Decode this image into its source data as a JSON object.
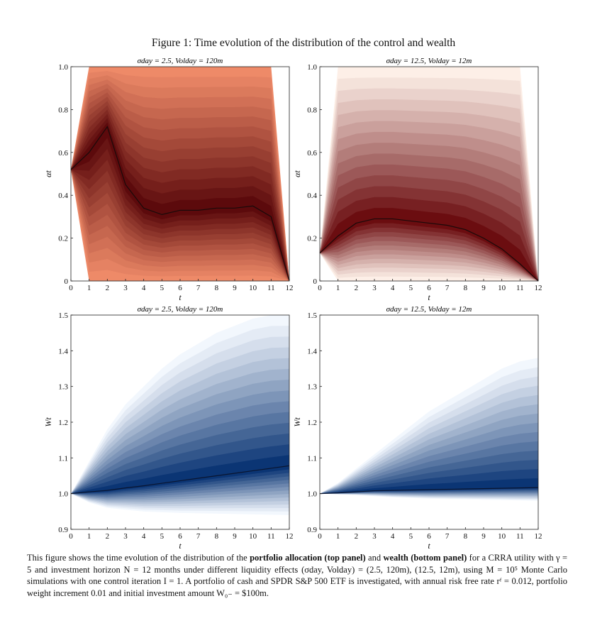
{
  "figure": {
    "title": "Figure 1: Time evolution of the distribution of the control and wealth"
  },
  "panels": [
    {
      "id": "alloc-left",
      "subtitle": "σday = 2.5, Volday = 120m",
      "ylabel": "αt",
      "xlabel": "t",
      "xticks": [
        "0",
        "1",
        "2",
        "3",
        "4",
        "5",
        "6",
        "7",
        "8",
        "9",
        "10",
        "11",
        "12"
      ],
      "yticks": [
        "0",
        "0.2",
        "0.4",
        "0.6",
        "0.8",
        "1.0"
      ],
      "colors": {
        "light": "#ee8a68",
        "dark": "#5c0a0c",
        "median": "#1a0a0a"
      }
    },
    {
      "id": "alloc-right",
      "subtitle": "σday = 12.5, Volday = 12m",
      "ylabel": "αt",
      "xlabel": "t",
      "xticks": [
        "0",
        "1",
        "2",
        "3",
        "4",
        "5",
        "6",
        "7",
        "8",
        "9",
        "10",
        "11",
        "12"
      ],
      "yticks": [
        "0",
        "0.2",
        "0.4",
        "0.6",
        "0.8",
        "1.0"
      ],
      "colors": {
        "light": "#fdefe7",
        "dark": "#6b0d10",
        "median": "#1a0a0a"
      }
    },
    {
      "id": "wealth-left",
      "subtitle": "σday = 2.5, Volday = 120m",
      "ylabel": "Wt",
      "xlabel": "t",
      "xticks": [
        "0",
        "1",
        "2",
        "3",
        "4",
        "5",
        "6",
        "7",
        "8",
        "9",
        "10",
        "11",
        "12"
      ],
      "yticks": [
        "0.9",
        "1.0",
        "1.1",
        "1.2",
        "1.3",
        "1.4",
        "1.5"
      ],
      "colors": {
        "light": "#f2f7fd",
        "dark": "#0b3574",
        "median": "#0a1530"
      }
    },
    {
      "id": "wealth-right",
      "subtitle": "σday = 12.5, Volday = 12m",
      "ylabel": "Wt",
      "xlabel": "t",
      "xticks": [
        "0",
        "1",
        "2",
        "3",
        "4",
        "5",
        "6",
        "7",
        "8",
        "9",
        "10",
        "11",
        "12"
      ],
      "yticks": [
        "0.9",
        "1.0",
        "1.1",
        "1.2",
        "1.3",
        "1.4",
        "1.5"
      ],
      "colors": {
        "light": "#f2f7fd",
        "dark": "#0b3574",
        "median": "#0a1530"
      }
    }
  ],
  "chart_data": [
    {
      "type": "area",
      "title": "σday = 2.5, Volday = 120m",
      "xlabel": "t",
      "ylabel": "αt",
      "xlim": [
        0,
        12
      ],
      "ylim": [
        0,
        1
      ],
      "x": [
        0,
        1,
        2,
        3,
        4,
        5,
        6,
        7,
        8,
        9,
        10,
        11,
        12
      ],
      "median": [
        0.52,
        0.6,
        0.72,
        0.45,
        0.34,
        0.31,
        0.33,
        0.33,
        0.34,
        0.34,
        0.35,
        0.3,
        0.0
      ],
      "lower_bound": [
        0.52,
        0.0,
        0.0,
        0.0,
        0.0,
        0.0,
        0.0,
        0.0,
        0.0,
        0.0,
        0.0,
        0.0,
        0.0
      ],
      "upper_bound": [
        0.52,
        1.0,
        1.0,
        1.0,
        1.0,
        1.0,
        1.0,
        1.0,
        1.0,
        1.0,
        1.0,
        1.0,
        0.0
      ]
    },
    {
      "type": "area",
      "title": "σday = 12.5, Volday = 12m",
      "xlabel": "t",
      "ylabel": "αt",
      "xlim": [
        0,
        12
      ],
      "ylim": [
        0,
        1
      ],
      "x": [
        0,
        1,
        2,
        3,
        4,
        5,
        6,
        7,
        8,
        9,
        10,
        11,
        12
      ],
      "median": [
        0.13,
        0.21,
        0.27,
        0.29,
        0.29,
        0.28,
        0.27,
        0.26,
        0.24,
        0.2,
        0.15,
        0.08,
        0.0
      ],
      "lower_bound": [
        0.13,
        0.0,
        0.0,
        0.0,
        0.0,
        0.0,
        0.0,
        0.0,
        0.0,
        0.0,
        0.0,
        0.0,
        0.0
      ],
      "upper_bound": [
        0.13,
        1.0,
        1.0,
        1.0,
        1.0,
        1.0,
        1.0,
        1.0,
        1.0,
        1.0,
        1.0,
        1.0,
        0.0
      ]
    },
    {
      "type": "area",
      "title": "σday = 2.5, Volday = 120m",
      "xlabel": "t",
      "ylabel": "Wt",
      "xlim": [
        0,
        12
      ],
      "ylim": [
        0.9,
        1.5
      ],
      "x": [
        0,
        1,
        2,
        3,
        4,
        5,
        6,
        7,
        8,
        9,
        10,
        11,
        12
      ],
      "median": [
        1.0,
        1.005,
        1.009,
        1.016,
        1.022,
        1.029,
        1.036,
        1.043,
        1.05,
        1.057,
        1.064,
        1.071,
        1.078
      ],
      "lower_bound": [
        1.0,
        0.975,
        0.96,
        0.955,
        0.95,
        0.948,
        0.946,
        0.945,
        0.944,
        0.943,
        0.942,
        0.941,
        0.94
      ],
      "upper_bound": [
        1.0,
        1.09,
        1.18,
        1.25,
        1.3,
        1.35,
        1.39,
        1.42,
        1.45,
        1.47,
        1.49,
        1.5,
        1.5
      ]
    },
    {
      "type": "area",
      "title": "σday = 12.5, Volday = 12m",
      "xlabel": "t",
      "ylabel": "Wt",
      "xlim": [
        0,
        12
      ],
      "ylim": [
        0.9,
        1.5
      ],
      "x": [
        0,
        1,
        2,
        3,
        4,
        5,
        6,
        7,
        8,
        9,
        10,
        11,
        12
      ],
      "median": [
        1.0,
        1.002,
        1.005,
        1.008,
        1.009,
        1.01,
        1.011,
        1.012,
        1.013,
        1.014,
        1.015,
        1.016,
        1.017
      ],
      "lower_bound": [
        1.0,
        0.998,
        0.996,
        0.993,
        0.99,
        0.988,
        0.986,
        0.985,
        0.984,
        0.983,
        0.982,
        0.981,
        0.98
      ],
      "upper_bound": [
        1.0,
        1.03,
        1.07,
        1.11,
        1.15,
        1.19,
        1.23,
        1.26,
        1.29,
        1.32,
        1.35,
        1.37,
        1.38
      ]
    }
  ],
  "caption": {
    "p1": "This figure shows the time evolution of the distribution of the ",
    "b1": "portfolio allocation (top panel)",
    "p2": " and ",
    "b2": "wealth (bottom panel)",
    "p3": " for a CRRA utility with γ = 5 and investment horizon N = 12 months under different liquidity effects (σday, Volday) = (2.5, 120m), (12.5, 12m), using M = 10⁵ Monte Carlo simulations with one control iteration I = 1. A portfolio of cash and SPDR S&P 500 ETF is investigated, with annual risk free rate rᶠ = 0.012, portfolio weight increment 0.01 and initial investment amount W₀₋ = $100m."
  }
}
